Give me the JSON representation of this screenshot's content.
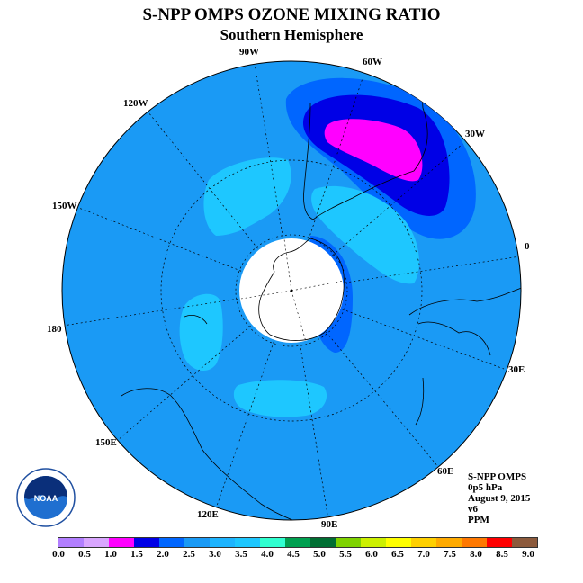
{
  "header": {
    "title": "S-NPP OMPS OZONE MIXING RATIO",
    "subtitle": "Southern Hemisphere"
  },
  "map": {
    "projection": "south-polar-stereographic",
    "background_color": "#1A9AF5",
    "longitude_labels": [
      "90W",
      "60W",
      "30W",
      "0",
      "30E",
      "60E",
      "90E",
      "120E",
      "150E",
      "180",
      "150W",
      "120W"
    ],
    "contour_colors": {
      "level_2_5": "#1A9AF5",
      "level_3_0": "#1EC7FF",
      "level_2_0": "#0066FF",
      "level_1_5": "#0000E6",
      "level_1_0": "#FF00FF"
    }
  },
  "info": {
    "line1": "S-NPP OMPS",
    "line2": "0p5 hPa",
    "line3": "August 9, 2015",
    "line4": "v6",
    "line5": "PPM"
  },
  "logo": {
    "text": "NOAA",
    "icon": "noaa-logo-icon"
  },
  "colorbar": {
    "colors": [
      "#B27FFF",
      "#D9A6FF",
      "#FF00FF",
      "#0000E6",
      "#0066FF",
      "#1A9AF5",
      "#1EB4FF",
      "#1EC7FF",
      "#30FFD0",
      "#00A050",
      "#006E32",
      "#7FD200",
      "#CCF000",
      "#FFFF00",
      "#FFD000",
      "#FFAA00",
      "#FF7800",
      "#FF0000",
      "#8C5A3C"
    ],
    "tick_labels": [
      "0.0",
      "0.5",
      "1.0",
      "1.5",
      "2.0",
      "2.5",
      "3.0",
      "3.5",
      "4.0",
      "4.5",
      "5.0",
      "5.5",
      "6.0",
      "6.5",
      "7.0",
      "7.5",
      "8.0",
      "8.5",
      "9.0"
    ]
  }
}
